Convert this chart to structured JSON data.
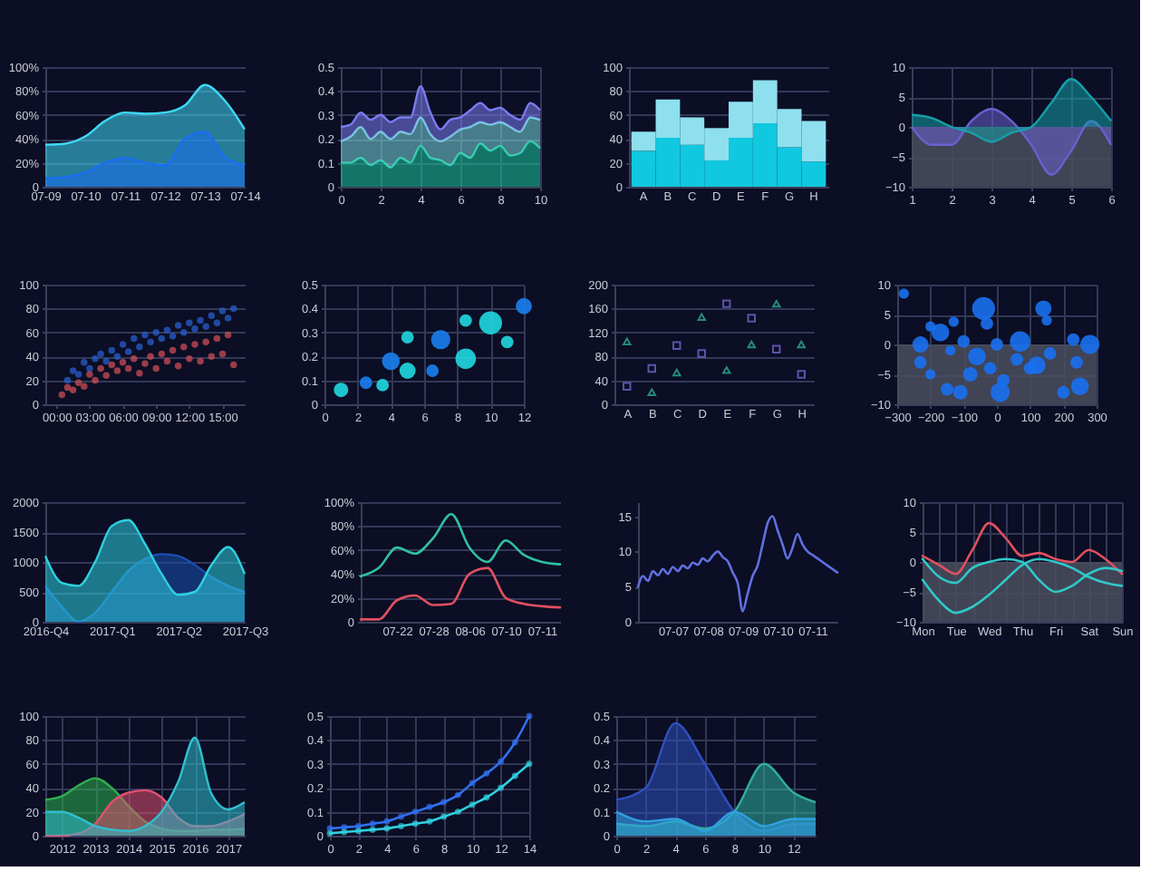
{
  "chart_data": [
    {
      "type": "area",
      "categories": [
        "07-09",
        null,
        "07-10",
        null,
        "07-11",
        null,
        "07-12",
        null,
        "07-13",
        null,
        "07-14"
      ],
      "ylim": [
        0,
        100
      ],
      "yticks": [
        0,
        {
          "value": 20,
          "label": "20%"
        },
        {
          "value": 40,
          "label": "40%"
        },
        {
          "value": 60,
          "label": "60%"
        },
        {
          "value": 80,
          "label": "80%"
        },
        {
          "value": 100,
          "label": "100%"
        }
      ],
      "grid": "y",
      "series": [
        {
          "color": "#3fd8f5",
          "values": [
            35,
            36,
            42,
            55,
            62,
            61,
            62,
            68,
            85,
            72,
            48
          ]
        },
        {
          "color": "#1a6ef0",
          "values": [
            7,
            8,
            12,
            20,
            24,
            20,
            18,
            40,
            46,
            25,
            18
          ]
        }
      ]
    },
    {
      "type": "area",
      "stacked": true,
      "x": [
        0,
        0.5,
        1,
        1.5,
        2,
        2.5,
        3,
        3.5,
        4,
        4.5,
        5,
        5.5,
        6,
        6.5,
        7,
        7.5,
        8,
        8.5,
        9,
        9.5,
        10
      ],
      "xlim": [
        0,
        10
      ],
      "xticks": [
        0,
        2,
        4,
        6,
        8,
        10
      ],
      "ylim": [
        0,
        0.5
      ],
      "yticks": [
        0,
        0.1,
        0.2,
        0.3,
        0.4,
        0.5
      ],
      "grid": true,
      "series": [
        {
          "color": "#1fc8a0",
          "values": [
            0.1,
            0.1,
            0.12,
            0.09,
            0.11,
            0.08,
            0.12,
            0.1,
            0.17,
            0.12,
            0.11,
            0.09,
            0.14,
            0.12,
            0.18,
            0.15,
            0.17,
            0.13,
            0.14,
            0.19,
            0.16
          ]
        },
        {
          "color": "#7ad8e0",
          "values": [
            0.09,
            0.11,
            0.13,
            0.11,
            0.12,
            0.12,
            0.11,
            0.12,
            0.12,
            0.1,
            0.08,
            0.12,
            0.1,
            0.13,
            0.09,
            0.11,
            0.1,
            0.12,
            0.09,
            0.1,
            0.12
          ]
        },
        {
          "color": "#7b7bf0",
          "values": [
            0.06,
            0.05,
            0.06,
            0.08,
            0.07,
            0.07,
            0.06,
            0.07,
            0.13,
            0.09,
            0.05,
            0.07,
            0.05,
            0.07,
            0.08,
            0.06,
            0.06,
            0.05,
            0.05,
            0.06,
            0.04
          ]
        }
      ]
    },
    {
      "type": "bar",
      "stacked": true,
      "categories": [
        "A",
        "B",
        "C",
        "D",
        "E",
        "F",
        "G",
        "H"
      ],
      "ylim": [
        0,
        100
      ],
      "yticks": [
        0,
        20,
        40,
        60,
        80,
        100
      ],
      "grid": "y",
      "series": [
        {
          "color": "#10c8e0",
          "values": [
            30,
            41,
            35,
            22,
            41,
            53,
            33,
            21
          ]
        },
        {
          "color": "#8ee0ee",
          "values": [
            16,
            32,
            23,
            27,
            30,
            36,
            32,
            34
          ]
        }
      ]
    },
    {
      "type": "area",
      "x": [
        1,
        1.5,
        2,
        2.5,
        3,
        3.5,
        4,
        4.5,
        5,
        5.5,
        6
      ],
      "xlim": [
        1,
        6
      ],
      "xticks": [
        1,
        2,
        3,
        4,
        5,
        6
      ],
      "ylim": [
        -10,
        10
      ],
      "yticks": [
        -10,
        -5,
        0,
        5,
        10
      ],
      "grid": true,
      "bands": [
        {
          "axis": "y",
          "from": -10,
          "to": 0,
          "color": "#4a4e5e"
        }
      ],
      "series": [
        {
          "color": "#6a60d0",
          "values": [
            0,
            -3,
            -3,
            1,
            3,
            1,
            -3,
            -8,
            -4,
            1,
            -3
          ]
        },
        {
          "color": "#16a0a8",
          "values": [
            2,
            1.5,
            0,
            -1,
            -2.5,
            -1,
            0,
            4,
            8,
            5,
            1
          ]
        }
      ]
    },
    {
      "type": "scatter",
      "xlim": [
        -1,
        17
      ],
      "xticks": [
        {
          "value": 0,
          "label": "00:00"
        },
        {
          "value": 3,
          "label": "03:00"
        },
        {
          "value": 6,
          "label": "06:00"
        },
        {
          "value": 9,
          "label": "09:00"
        },
        {
          "value": 12,
          "label": "12:00"
        },
        {
          "value": 15,
          "label": "15:00"
        }
      ],
      "ylim": [
        0,
        100
      ],
      "yticks": [
        0,
        20,
        40,
        60,
        80,
        100
      ],
      "grid": "y",
      "marker": "circle",
      "series": [
        {
          "color": "#2a62d8",
          "x": [
            1,
            1.5,
            2,
            2.5,
            3,
            3.5,
            4,
            4.5,
            5,
            5.5,
            6,
            6.5,
            7,
            7.5,
            8,
            8.5,
            9,
            9.5,
            10,
            10.5,
            11,
            11.5,
            12,
            12.5,
            13,
            13.5,
            14,
            14.5,
            15,
            15.5,
            16
          ],
          "values": [
            20,
            28,
            25,
            35,
            30,
            38,
            42,
            36,
            45,
            40,
            50,
            44,
            55,
            48,
            58,
            52,
            60,
            55,
            62,
            57,
            66,
            60,
            68,
            63,
            70,
            65,
            74,
            68,
            78,
            72,
            80
          ]
        },
        {
          "color": "#d8505a",
          "x": [
            0.5,
            1,
            1.5,
            2,
            2.5,
            3,
            3.5,
            4,
            4.5,
            5,
            5.5,
            6,
            6.5,
            7,
            7.5,
            8,
            8.5,
            9,
            9.5,
            10,
            10.5,
            11,
            11.5,
            12,
            12.5,
            13,
            13.5,
            14,
            14.5,
            15,
            15.5,
            16
          ],
          "values": [
            8,
            14,
            12,
            18,
            15,
            25,
            20,
            30,
            24,
            33,
            28,
            35,
            30,
            38,
            26,
            34,
            40,
            30,
            42,
            36,
            45,
            32,
            48,
            38,
            50,
            36,
            52,
            40,
            55,
            42,
            58,
            33
          ]
        }
      ]
    },
    {
      "type": "bubble",
      "xlim": [
        0,
        12
      ],
      "xticks": [
        0,
        2,
        4,
        6,
        8,
        10,
        12
      ],
      "ylim": [
        0,
        0.5
      ],
      "yticks": [
        0,
        0.1,
        0.2,
        0.3,
        0.4,
        0.5
      ],
      "grid": true,
      "marker": "circle",
      "series": [
        {
          "color": "#20d8e0",
          "x": [
            1,
            3.5,
            5,
            5,
            8.5,
            8.5,
            10,
            11
          ],
          "values": [
            0.06,
            0.08,
            0.28,
            0.14,
            0.35,
            0.19,
            0.34,
            0.26
          ],
          "sizes": [
            0.4,
            0.3,
            0.3,
            0.5,
            0.3,
            0.8,
            1,
            0.3
          ]
        },
        {
          "color": "#1a80f0",
          "x": [
            2.5,
            4,
            6.5,
            7,
            12
          ],
          "values": [
            0.09,
            0.18,
            0.14,
            0.27,
            0.41
          ],
          "sizes": [
            0.3,
            0.6,
            0.3,
            0.7,
            0.5
          ]
        }
      ]
    },
    {
      "type": "scatter",
      "categories": [
        "A",
        "B",
        "C",
        "D",
        "E",
        "F",
        "G",
        "H"
      ],
      "ylim": [
        0,
        200
      ],
      "yticks": [
        0,
        40,
        80,
        120,
        160,
        200
      ],
      "grid": "y",
      "series": [
        {
          "color": "#30c0a0",
          "marker": "triangle",
          "values": [
            105,
            20,
            53,
            146,
            57,
            100,
            168,
            100
          ]
        },
        {
          "color": "#8070e0",
          "marker": "square",
          "values": [
            30,
            60,
            98,
            85,
            168,
            144,
            92,
            50
          ]
        }
      ]
    },
    {
      "type": "bubble",
      "xlim": [
        -300,
        300
      ],
      "xticks": [
        -300,
        -200,
        -100,
        0,
        100,
        200,
        300
      ],
      "ylim": [
        -10,
        10
      ],
      "yticks": [
        -10,
        -5,
        0,
        5,
        10
      ],
      "grid": true,
      "marker": "circle",
      "bands": [
        {
          "axis": "y",
          "from": -10,
          "to": 0,
          "color": "#4a4e5e"
        }
      ],
      "series": [
        {
          "color": "#1a70f0",
          "x": [
            -280,
            -230,
            -200,
            -170,
            -130,
            -140,
            -100,
            -60,
            -40,
            -30,
            0,
            10,
            -80,
            70,
            100,
            140,
            150,
            160,
            230,
            250,
            280,
            -230,
            -200,
            -150,
            -110,
            -20,
            20,
            60,
            120,
            200,
            240
          ],
          "values": [
            8.5,
            0,
            3,
            2,
            3.8,
            -1,
            0.5,
            -2,
            6,
            3.5,
            0,
            -8,
            -5,
            0.5,
            -4,
            6,
            4,
            -1.5,
            0.8,
            -7,
            0,
            -3,
            -5,
            -7.5,
            -8,
            -4,
            -6,
            -2.5,
            -3.5,
            -8,
            -3
          ],
          "sizes": [
            0.2,
            0.5,
            0.2,
            0.6,
            0.2,
            0.2,
            0.3,
            0.6,
            1,
            0.3,
            0.3,
            0.7,
            0.4,
            0.8,
            0.3,
            0.5,
            0.2,
            0.3,
            0.3,
            0.6,
            0.7,
            0.3,
            0.2,
            0.3,
            0.4,
            0.3,
            0.3,
            0.3,
            0.6,
            0.3,
            0.3
          ]
        }
      ]
    },
    {
      "type": "area",
      "categories": [
        "2016-Q4",
        null,
        null,
        null,
        "2017-Q1",
        null,
        null,
        null,
        "2017-Q2",
        null,
        null,
        null,
        "2017-Q3"
      ],
      "ylim": [
        0,
        2000
      ],
      "yticks": [
        0,
        500,
        1000,
        1500,
        2000
      ],
      "grid": "y",
      "series": [
        {
          "color": "#1a50b0",
          "values": [
            600,
            250,
            0,
            150,
            500,
            850,
            1050,
            1130,
            1100,
            950,
            750,
            600,
            500
          ]
        },
        {
          "color": "#30d0e0",
          "values": [
            1100,
            650,
            600,
            1000,
            1600,
            1700,
            1300,
            800,
            450,
            500,
            950,
            1250,
            800
          ]
        }
      ]
    },
    {
      "type": "line",
      "categories": [
        null,
        null,
        "07-22",
        null,
        "07-28",
        null,
        "08-06",
        null,
        "07-10",
        null,
        "07-11",
        null
      ],
      "ylim": [
        0,
        100
      ],
      "yticks": [
        0,
        {
          "value": 20,
          "label": "20%"
        },
        {
          "value": 40,
          "label": "40%"
        },
        {
          "value": 60,
          "label": "60%"
        },
        {
          "value": 80,
          "label": "80%"
        },
        {
          "value": 100,
          "label": "100%"
        }
      ],
      "grid": "y",
      "series": [
        {
          "color": "#30c0a0",
          "values": [
            38,
            45,
            62,
            57,
            70,
            90,
            62,
            50,
            68,
            56,
            50,
            48
          ]
        },
        {
          "color": "#e05060",
          "values": [
            2,
            2,
            18,
            22,
            14,
            15,
            40,
            45,
            20,
            15,
            13,
            12
          ]
        }
      ]
    },
    {
      "type": "line",
      "categories": [
        null,
        null,
        null,
        null,
        null,
        null,
        null,
        "07-07",
        null,
        null,
        null,
        null,
        null,
        null,
        "07-08",
        null,
        null,
        null,
        null,
        null,
        null,
        "07-09",
        null,
        null,
        null,
        null,
        null,
        null,
        "07-10",
        null,
        null,
        null,
        null,
        null,
        null,
        "07-11",
        null,
        null,
        null,
        null,
        null
      ],
      "ylim": [
        0,
        17
      ],
      "yticks": [
        0,
        5,
        10,
        15
      ],
      "series": [
        {
          "color": "#6070e0",
          "values": [
            5,
            6.5,
            5.8,
            7.2,
            6.6,
            7.5,
            6.8,
            7.8,
            7.2,
            8,
            7.6,
            8.4,
            8.1,
            9,
            8.6,
            9.4,
            10,
            9.2,
            8.6,
            7,
            5.5,
            1.5,
            4,
            6.5,
            8,
            11,
            14,
            15,
            13,
            11,
            9,
            10.5,
            12.5,
            11,
            10,
            9.5,
            9,
            8.5,
            8,
            7.5,
            7
          ]
        }
      ]
    },
    {
      "type": "line",
      "categories": [
        "Mon",
        null,
        "Tue",
        null,
        "Wed",
        null,
        "Thu",
        null,
        "Fri",
        null,
        "Sat",
        null,
        "Sun"
      ],
      "ylim": [
        -10,
        10
      ],
      "yticks": [
        -10,
        -5,
        0,
        5,
        10
      ],
      "grid": true,
      "bands": [
        {
          "axis": "y",
          "from": -10,
          "to": 0,
          "color": "#4a4e5e"
        }
      ],
      "series": [
        {
          "color": "#e05060",
          "values": [
            1,
            -0.5,
            -2,
            2,
            6.5,
            4,
            1,
            1.5,
            0.5,
            0,
            2,
            0.5,
            -2
          ]
        },
        {
          "color": "#30c8c8",
          "values": [
            0.5,
            -2.5,
            -3.5,
            -1,
            0,
            0.5,
            0,
            -3,
            -5,
            -4,
            -2,
            -1,
            -1.5
          ]
        },
        {
          "color": "#30c8c8",
          "values": [
            -3,
            -6.5,
            -8.5,
            -7.5,
            -5.5,
            -3,
            -0.5,
            0.5,
            0,
            -1,
            -2.5,
            -3.5,
            -4
          ]
        }
      ]
    },
    {
      "type": "area",
      "x": [
        2011.5,
        2012,
        2012.5,
        2013,
        2013.5,
        2014,
        2014.5,
        2015,
        2015.5,
        2016,
        2016.5,
        2017,
        2017.5
      ],
      "xlim": [
        2011.5,
        2017.5
      ],
      "xticks": [
        2012,
        2013,
        2014,
        2015,
        2016,
        2017
      ],
      "ylim": [
        0,
        100
      ],
      "yticks": [
        0,
        20,
        40,
        60,
        80,
        100
      ],
      "grid": true,
      "series": [
        {
          "color": "#30b050",
          "values": [
            30,
            33,
            42,
            48,
            40,
            25,
            12,
            6,
            4,
            4,
            5,
            5,
            6
          ]
        },
        {
          "color": "#e05070",
          "values": [
            0,
            0,
            2,
            10,
            28,
            36,
            38,
            32,
            15,
            8,
            8,
            12,
            18
          ]
        },
        {
          "color": "#30c0d0",
          "values": [
            20,
            20,
            15,
            8,
            5,
            4,
            8,
            20,
            45,
            82,
            35,
            22,
            28
          ]
        }
      ]
    },
    {
      "type": "line",
      "x": [
        0,
        1,
        2,
        3,
        4,
        5,
        6,
        7,
        8,
        9,
        10,
        11,
        12,
        13,
        14
      ],
      "xlim": [
        0,
        14
      ],
      "xticks": [
        0,
        2,
        4,
        6,
        8,
        10,
        12,
        14
      ],
      "ylim": [
        0,
        0.5
      ],
      "yticks": [
        0,
        0.1,
        0.2,
        0.3,
        0.4,
        0.5
      ],
      "grid": true,
      "marker": "circle",
      "series": [
        {
          "color": "#3070f0",
          "values": [
            0.03,
            0.035,
            0.04,
            0.05,
            0.06,
            0.08,
            0.1,
            0.12,
            0.14,
            0.17,
            0.22,
            0.26,
            0.31,
            0.39,
            0.5
          ]
        },
        {
          "color": "#30d0e0",
          "values": [
            0.01,
            0.015,
            0.02,
            0.025,
            0.03,
            0.04,
            0.05,
            0.06,
            0.08,
            0.1,
            0.13,
            0.16,
            0.2,
            0.25,
            0.3
          ]
        }
      ]
    },
    {
      "type": "area",
      "x": [
        0,
        2,
        4,
        6,
        8,
        10,
        12,
        13.5
      ],
      "xlim": [
        0,
        13.5
      ],
      "xticks": [
        0,
        2,
        4,
        6,
        8,
        10,
        12
      ],
      "ylim": [
        0,
        0.5
      ],
      "yticks": [
        0,
        0.1,
        0.2,
        0.3,
        0.4,
        0.5
      ],
      "grid": true,
      "series": [
        {
          "color": "#3050c0",
          "values": [
            0.15,
            0.2,
            0.47,
            0.3,
            0.1,
            0.02,
            0.05,
            0.05
          ]
        },
        {
          "color": "#30b0a0",
          "values": [
            0.05,
            0.04,
            0.06,
            0.03,
            0.1,
            0.3,
            0.18,
            0.14
          ]
        },
        {
          "color": "#30a0e0",
          "values": [
            0.1,
            0.06,
            0.07,
            0.02,
            0.1,
            0.04,
            0.07,
            0.07
          ]
        }
      ]
    }
  ]
}
